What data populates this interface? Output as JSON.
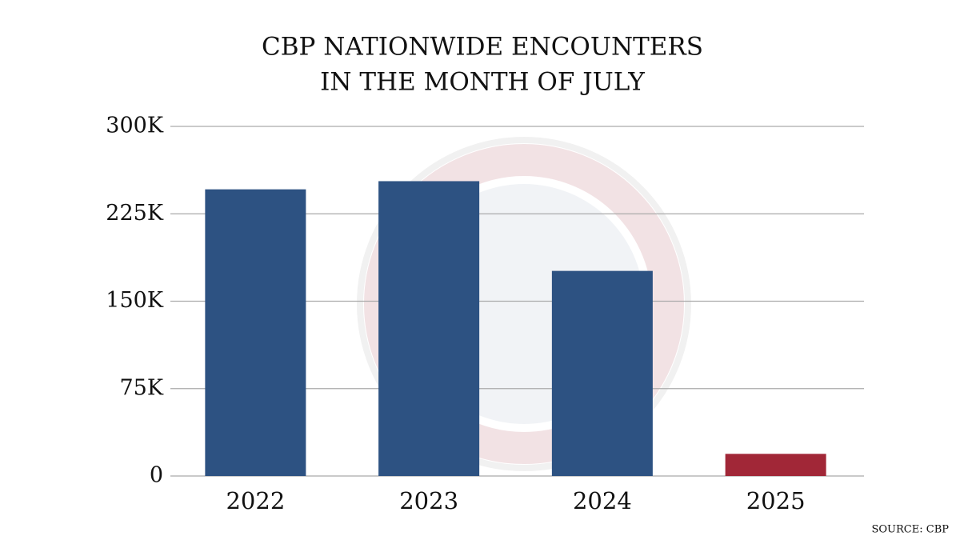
{
  "chart_data": {
    "type": "bar",
    "title_lines": [
      "CBP NATIONWIDE ENCOUNTERS",
      "IN THE MONTH OF JULY"
    ],
    "categories": [
      "2022",
      "2023",
      "2024",
      "2025"
    ],
    "values": [
      246000,
      253000,
      176000,
      19000
    ],
    "colors": [
      "#2d5282",
      "#2d5282",
      "#2d5282",
      "#a12737"
    ],
    "ylim": [
      0,
      300000
    ],
    "yticks": [
      0,
      {
        "value": 75000,
        "label": "75K"
      },
      {
        "value": 150000,
        "label": "150K"
      },
      {
        "value": 225000,
        "label": "225K"
      },
      {
        "value": 300000,
        "label": "300K"
      }
    ],
    "grid": true,
    "source": "SOURCE: CBP"
  }
}
